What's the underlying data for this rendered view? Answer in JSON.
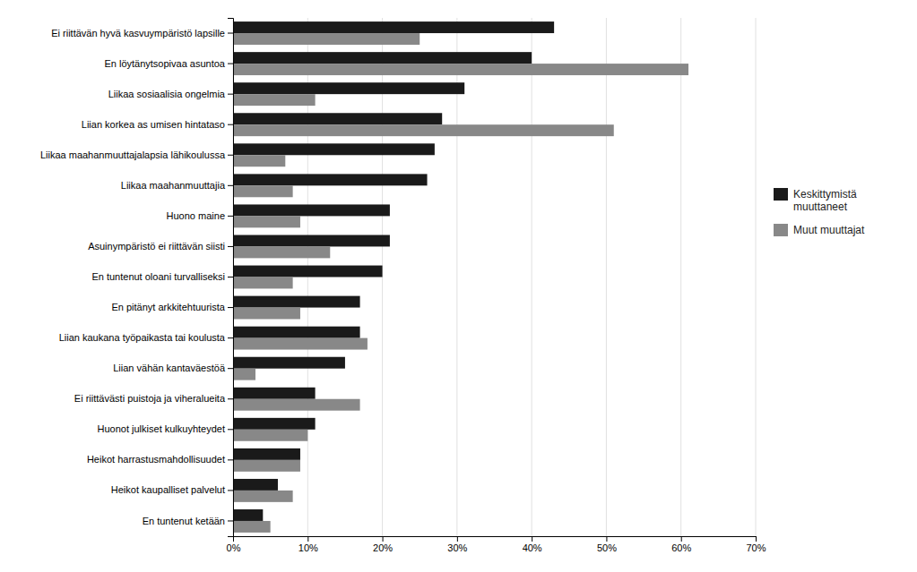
{
  "chart_data": {
    "type": "bar",
    "orientation": "horizontal",
    "categories": [
      "Ei riittävän hyvä kasvuympäristö lapsille",
      "En löytänytsopivaa asuntoa",
      "Liikaa sosiaalisia ongelmia",
      "Liian korkea as umisen hintataso",
      "Liikaa maahanmuuttajalapsia lähikoulussa",
      "Liikaa maahanmuuttajia",
      "Huono maine",
      "Asuinympäristö ei riittävän siisti",
      "En tuntenut oloani turvalliseksi",
      "En pitänyt arkkitehtuurista",
      "Liian kaukana työpaikasta tai koulusta",
      "Liian vähän kantaväestöä",
      "Ei riittävästi puistoja ja viheralueita",
      "Huonot julkiset kulkuyhteydet",
      "Heikot harrastusmahdollisuudet",
      "Heikot kaupalliset palvelut",
      "En tuntenut ketään"
    ],
    "series": [
      {
        "name": "Keskittymistä\nmuuttaneet",
        "color": "#1a1a1a",
        "values": [
          43,
          40,
          31,
          28,
          27,
          26,
          21,
          21,
          20,
          17,
          17,
          15,
          11,
          11,
          9,
          6,
          4
        ]
      },
      {
        "name": "Muut muuttajat",
        "color": "#888888",
        "values": [
          25,
          61,
          11,
          51,
          7,
          8,
          9,
          13,
          8,
          9,
          18,
          3,
          17,
          10,
          9,
          8,
          5
        ]
      }
    ],
    "xlim": [
      0,
      70
    ],
    "xticks": [
      {
        "value": 0,
        "label": "0%"
      },
      {
        "value": 10,
        "label": "10%"
      },
      {
        "value": 20,
        "label": "20%"
      },
      {
        "value": 30,
        "label": "30%"
      },
      {
        "value": 40,
        "label": "40%"
      },
      {
        "value": 50,
        "label": "50%"
      },
      {
        "value": 60,
        "label": "60%"
      },
      {
        "value": 70,
        "label": "70%"
      }
    ],
    "grid": true,
    "legend": "right"
  }
}
